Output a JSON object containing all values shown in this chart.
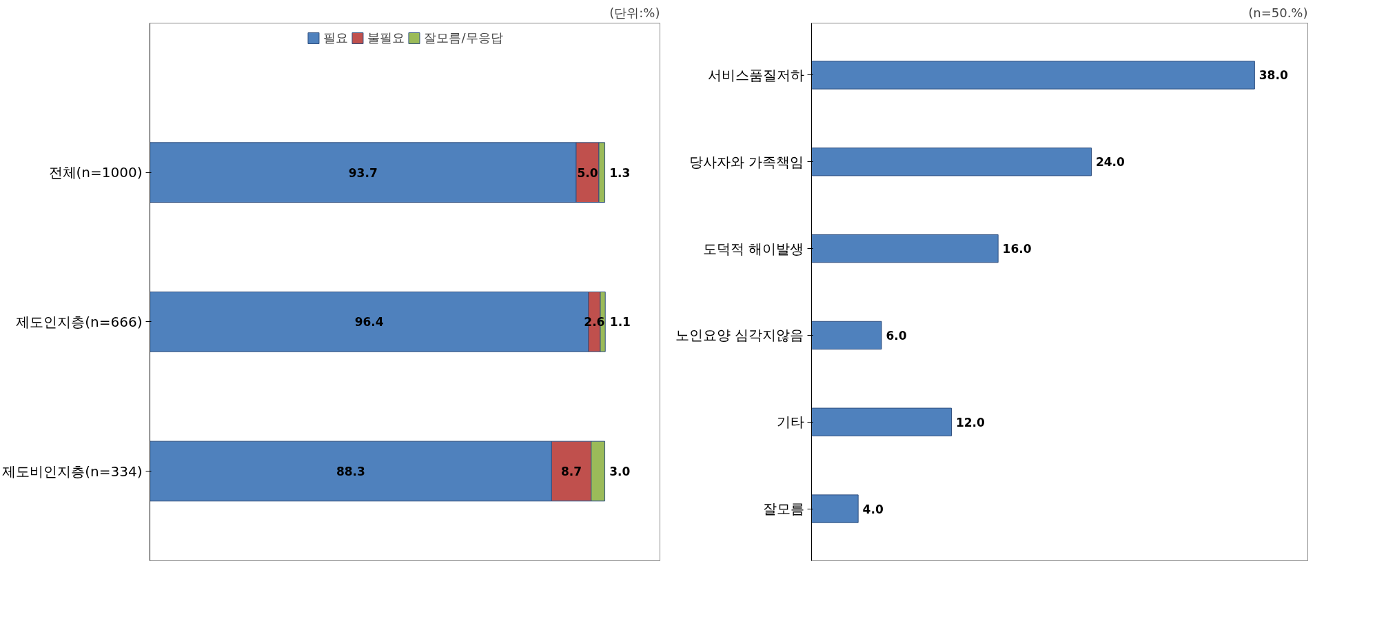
{
  "chart_data": [
    {
      "type": "bar",
      "orientation": "horizontal",
      "stacked": true,
      "categories": [
        "전체(n=1000)",
        "제도인지층(n=666)",
        "제도비인지층(n=334)"
      ],
      "series": [
        {
          "name": "필요",
          "color": "#4f81bd",
          "values": [
            93.7,
            96.4,
            88.3
          ],
          "value_labels": [
            "93.7",
            "96.4",
            "88.3"
          ]
        },
        {
          "name": "불필요",
          "color": "#c0504d",
          "values": [
            5.0,
            2.6,
            8.7
          ],
          "value_labels": [
            "5.0",
            "2.6",
            "8.7"
          ]
        },
        {
          "name": "잘모름/무응답",
          "color": "#9bbb59",
          "values": [
            1.3,
            1.1,
            3.0
          ],
          "value_labels": [
            "1.3",
            "1.1",
            "3.0"
          ]
        }
      ],
      "legend": "top",
      "grid": false,
      "tick_labels": "y",
      "annotations": [
        "(단위:%)"
      ]
    },
    {
      "type": "bar",
      "orientation": "horizontal",
      "categories": [
        "서비스품질저하",
        "당사자와 가족책임",
        "도덕적 해이발생",
        "노인요양 심각지않음",
        "기타",
        "잘모름"
      ],
      "series": [
        {
          "color": "#4f81bd",
          "values": [
            38.0,
            24.0,
            16.0,
            6.0,
            12.0,
            4.0
          ],
          "value_labels": [
            "38.0",
            "24.0",
            "16.0",
            "6.0",
            "12.0",
            "4.0"
          ]
        }
      ],
      "grid": false,
      "tick_labels": "y",
      "annotations": [
        "(n=50.%)"
      ]
    }
  ]
}
